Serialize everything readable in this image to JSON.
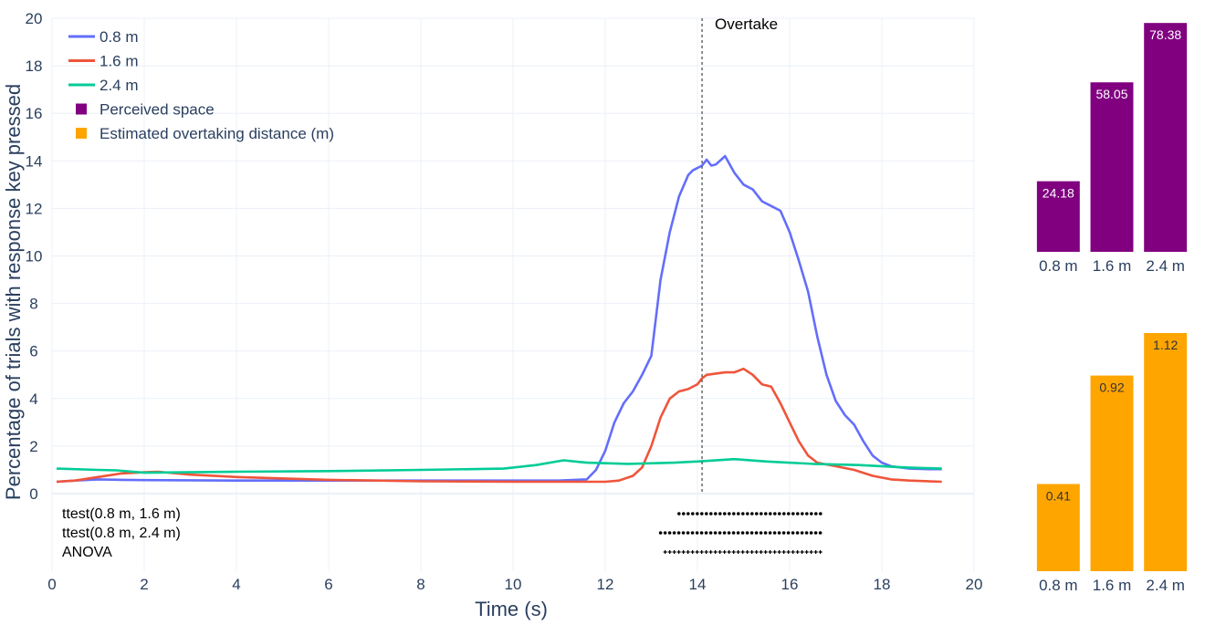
{
  "chart_data": [
    {
      "type": "line",
      "title": "",
      "xlabel": "Time (s)",
      "ylabel": "Percentage of trials with response key pressed",
      "xlim": [
        0,
        20
      ],
      "ylim": [
        0,
        20
      ],
      "x_ticks": [
        "0",
        "2",
        "4",
        "6",
        "8",
        "10",
        "12",
        "14",
        "16",
        "18",
        "20"
      ],
      "y_ticks": [
        "0",
        "2",
        "4",
        "6",
        "8",
        "10",
        "12",
        "14",
        "16",
        "18",
        "20"
      ],
      "grid": true,
      "legend_position": "top-left",
      "legend": [
        {
          "label": "0.8 m",
          "kind": "line",
          "color": "#636efa"
        },
        {
          "label": "1.6 m",
          "kind": "line",
          "color": "#ef553b"
        },
        {
          "label": "2.4 m",
          "kind": "line",
          "color": "#00cc96"
        },
        {
          "label": "Perceived space",
          "kind": "square",
          "color": "#800080"
        },
        {
          "label": "Estimated overtaking distance (m)",
          "kind": "square",
          "color": "#ffa500"
        }
      ],
      "annotation": {
        "label": "Overtake",
        "x": 14.1
      },
      "series": [
        {
          "name": "0.8 m",
          "color": "#636efa",
          "x": [
            0.1,
            0.5,
            1.0,
            1.5,
            2.0,
            3.0,
            4.0,
            6.0,
            8.0,
            10.0,
            11.0,
            11.6,
            11.8,
            12.0,
            12.2,
            12.4,
            12.6,
            12.8,
            13.0,
            13.2,
            13.4,
            13.6,
            13.8,
            13.9,
            14.0,
            14.1,
            14.2,
            14.3,
            14.4,
            14.6,
            14.8,
            15.0,
            15.2,
            15.4,
            15.6,
            15.8,
            16.0,
            16.2,
            16.4,
            16.6,
            16.8,
            17.0,
            17.2,
            17.4,
            17.6,
            17.8,
            18.0,
            18.2,
            18.4,
            18.6,
            19.0,
            19.3
          ],
          "values": [
            0.5,
            0.55,
            0.6,
            0.58,
            0.57,
            0.56,
            0.55,
            0.55,
            0.55,
            0.55,
            0.55,
            0.6,
            1.0,
            1.8,
            3.0,
            3.8,
            4.3,
            5.0,
            5.8,
            9.0,
            11.0,
            12.5,
            13.4,
            13.6,
            13.7,
            13.8,
            14.05,
            13.8,
            13.85,
            14.2,
            13.5,
            13.0,
            12.8,
            12.3,
            12.1,
            11.9,
            11.0,
            9.8,
            8.5,
            6.6,
            5.0,
            3.9,
            3.3,
            2.9,
            2.2,
            1.6,
            1.3,
            1.15,
            1.1,
            1.05,
            1.03,
            1.03
          ]
        },
        {
          "name": "1.6 m",
          "color": "#ef553b",
          "x": [
            0.1,
            0.5,
            1.0,
            1.5,
            2.0,
            2.3,
            3.0,
            4.0,
            6.0,
            8.0,
            10.0,
            12.0,
            12.3,
            12.6,
            12.8,
            13.0,
            13.2,
            13.4,
            13.6,
            13.8,
            14.0,
            14.1,
            14.2,
            14.4,
            14.6,
            14.8,
            15.0,
            15.2,
            15.4,
            15.6,
            15.8,
            16.0,
            16.2,
            16.4,
            16.6,
            17.0,
            17.4,
            17.8,
            18.2,
            18.6,
            19.3
          ],
          "values": [
            0.5,
            0.55,
            0.7,
            0.85,
            0.9,
            0.92,
            0.8,
            0.7,
            0.58,
            0.52,
            0.5,
            0.5,
            0.55,
            0.75,
            1.1,
            2.0,
            3.2,
            4.0,
            4.3,
            4.4,
            4.6,
            4.85,
            5.0,
            5.05,
            5.1,
            5.1,
            5.25,
            5.0,
            4.6,
            4.5,
            3.8,
            3.0,
            2.2,
            1.6,
            1.3,
            1.15,
            1.0,
            0.75,
            0.6,
            0.55,
            0.5
          ]
        },
        {
          "name": "2.4 m",
          "color": "#00cc96",
          "x": [
            0.1,
            1.0,
            1.4,
            2.0,
            4.0,
            6.0,
            8.0,
            9.8,
            10.5,
            11.1,
            11.6,
            12.5,
            13.5,
            14.0,
            14.8,
            15.5,
            16.5,
            17.5,
            18.5,
            19.3
          ],
          "values": [
            1.05,
            1.0,
            0.98,
            0.88,
            0.92,
            0.95,
            1.0,
            1.05,
            1.2,
            1.4,
            1.3,
            1.25,
            1.3,
            1.35,
            1.45,
            1.35,
            1.25,
            1.2,
            1.1,
            1.05
          ]
        }
      ],
      "significance_rows": [
        {
          "label": "ttest(0.8 m, 1.6 m)",
          "marker": "•",
          "from": 13.6,
          "to": 16.7
        },
        {
          "label": "ttest(0.8 m, 2.4 m)",
          "marker": "•",
          "from": 13.2,
          "to": 16.7
        },
        {
          "label": "ANOVA",
          "marker": "+",
          "from": 13.3,
          "to": 16.7
        }
      ]
    },
    {
      "type": "bar",
      "title": "",
      "series_name": "Perceived space",
      "color": "#800080",
      "categories": [
        "0.8 m",
        "1.6 m",
        "2.4 m"
      ],
      "values": [
        24.18,
        58.05,
        78.38
      ],
      "value_labels": [
        "24.18",
        "58.05",
        "78.38"
      ],
      "ylim": [
        0,
        80
      ]
    },
    {
      "type": "bar",
      "title": "",
      "series_name": "Estimated overtaking distance (m)",
      "color": "#ffa500",
      "categories": [
        "0.8 m",
        "1.6 m",
        "2.4 m"
      ],
      "values": [
        0.41,
        0.92,
        1.12
      ],
      "value_labels": [
        "0.41",
        "0.92",
        "1.12"
      ],
      "ylim": [
        0,
        1.15
      ]
    }
  ]
}
